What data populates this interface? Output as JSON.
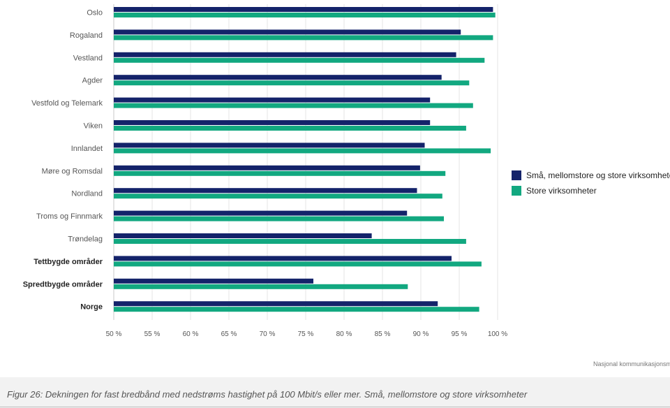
{
  "colors": {
    "series_1": "#14236a",
    "series_2": "#12a880"
  },
  "chart_data": {
    "type": "bar",
    "orientation": "horizontal",
    "categories": [
      "Oslo",
      "Rogaland",
      "Vestland",
      "Agder",
      "Vestfold og Telemark",
      "Viken",
      "Innlandet",
      "Møre og Romsdal",
      "Nordland",
      "Troms og Finnmark",
      "Trøndelag",
      "Tettbygde områder",
      "Spredtbygde områder",
      "Norge"
    ],
    "bold_categories": [
      "Tettbygde områder",
      "Spredtbygde områder",
      "Norge"
    ],
    "series": [
      {
        "name": "Små, mellomstore og store virksomheter",
        "values": [
          99.4,
          95.2,
          94.6,
          92.7,
          91.2,
          91.2,
          90.5,
          89.9,
          89.5,
          88.2,
          83.6,
          94.0,
          76.0,
          92.2
        ]
      },
      {
        "name": "Store virksomheter",
        "values": [
          99.7,
          99.4,
          98.3,
          96.3,
          96.8,
          95.9,
          99.1,
          93.2,
          92.8,
          93.0,
          95.9,
          97.9,
          88.3,
          97.6
        ]
      }
    ],
    "xlim": [
      50,
      100
    ],
    "xticks": [
      "50 %",
      "55 %",
      "60 %",
      "65 %",
      "70 %",
      "75 %",
      "80 %",
      "85 %",
      "90 %",
      "95 %",
      "100 %"
    ],
    "grid": true,
    "legend_position": "right"
  },
  "legend": [
    "Små, mellomstore og store virksomheter",
    "Store virksomheter"
  ],
  "credit": "Nasjonal kommunikasjonsmyndighet",
  "caption": "Figur 26: Dekningen for fast bredbånd med nedstrøms hastighet på 100 Mbit/s eller mer. Små, mellomstore og store virksomheter"
}
